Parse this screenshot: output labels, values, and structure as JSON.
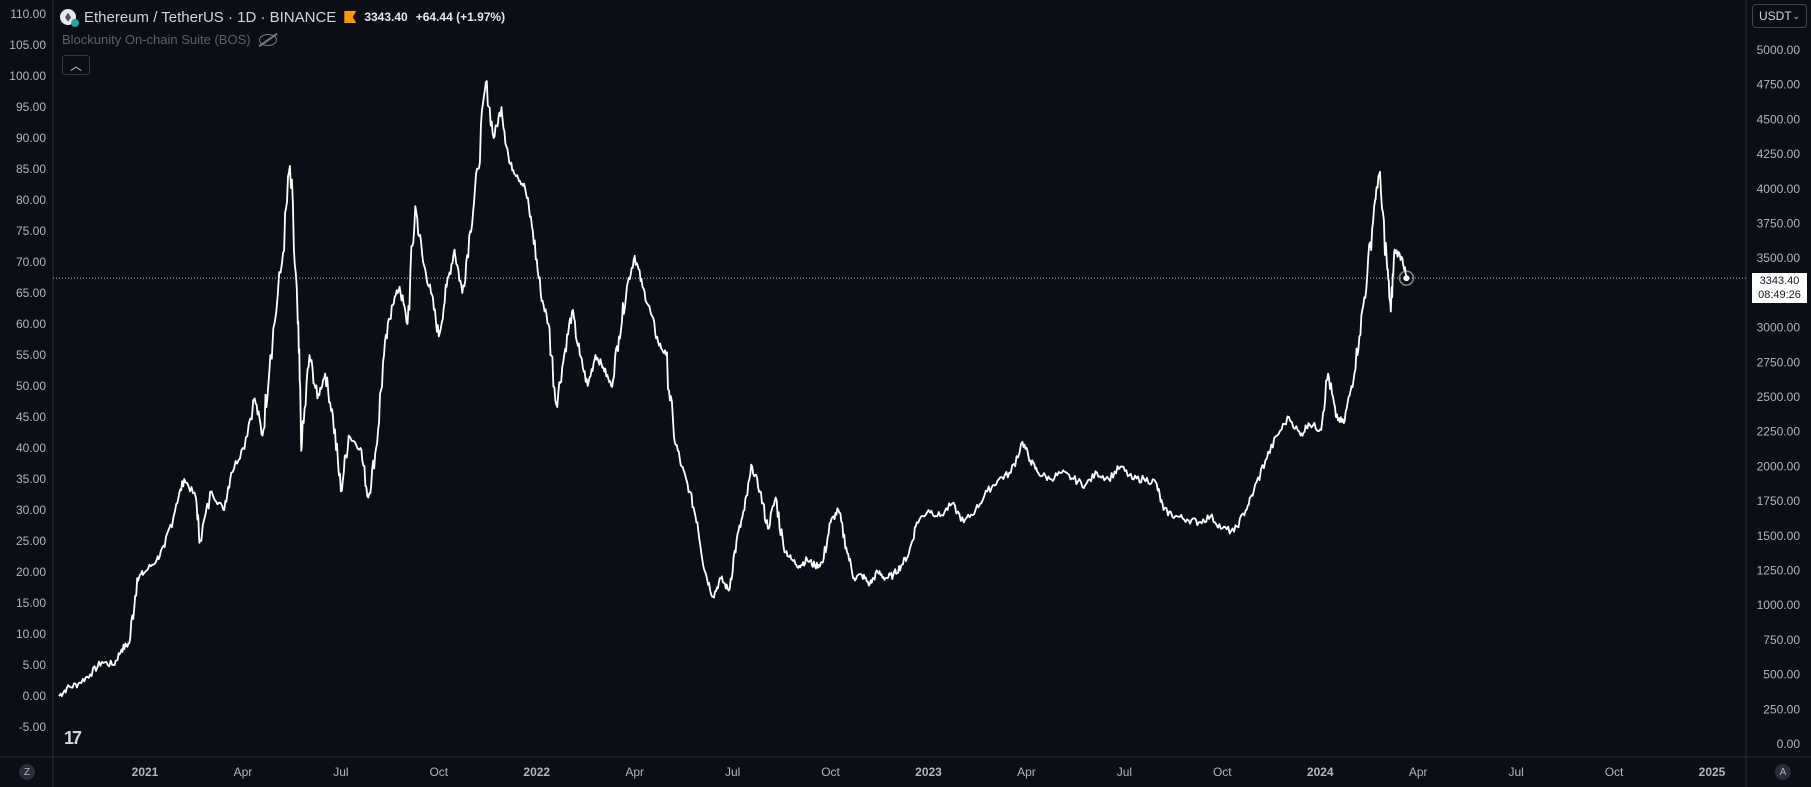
{
  "header": {
    "symbol_title": "Ethereum / TetherUS · 1D · BINANCE",
    "last_price": "3343.40",
    "change": "+64.44 (+1.97%)",
    "indicator_name": "Blockunity On-chain Suite (BOS)",
    "collapse_icon": "chevron-up-icon"
  },
  "currency_selector": {
    "label": "USDT",
    "icon": "chevron-down-icon"
  },
  "price_label": {
    "price": "3343.40",
    "countdown": "08:49:26"
  },
  "corner_buttons": {
    "left": "Z",
    "right": "A"
  },
  "colors": {
    "background": "#0c0e15",
    "line": "#ffffff",
    "text": "#b2b5be",
    "flag": "#ff9800"
  },
  "chart_data": {
    "type": "line",
    "left_axis": {
      "ticks": [
        "110.00",
        "105.00",
        "100.00",
        "95.00",
        "90.00",
        "85.00",
        "80.00",
        "75.00",
        "70.00",
        "65.00",
        "60.00",
        "55.00",
        "50.00",
        "45.00",
        "40.00",
        "35.00",
        "30.00",
        "25.00",
        "20.00",
        "15.00",
        "10.00",
        "5.00",
        "0.00",
        "-5.00"
      ],
      "range": [
        -5,
        110
      ]
    },
    "right_axis": {
      "ticks": [
        "5000.00",
        "4750.00",
        "4500.00",
        "4250.00",
        "4000.00",
        "3750.00",
        "3500.00",
        "3250.00",
        "3000.00",
        "2750.00",
        "2500.00",
        "2250.00",
        "2000.00",
        "1750.00",
        "1500.00",
        "1250.00",
        "1000.00",
        "750.00",
        "500.00",
        "250.00",
        "0.00"
      ],
      "range": [
        0,
        5000
      ]
    },
    "x_ticks": [
      {
        "label": "2021",
        "t": 2021.0,
        "bold": true
      },
      {
        "label": "Apr",
        "t": 2021.25
      },
      {
        "label": "Jul",
        "t": 2021.5
      },
      {
        "label": "Oct",
        "t": 2021.75
      },
      {
        "label": "2022",
        "t": 2022.0,
        "bold": true
      },
      {
        "label": "Apr",
        "t": 2022.25
      },
      {
        "label": "Jul",
        "t": 2022.5
      },
      {
        "label": "Oct",
        "t": 2022.75
      },
      {
        "label": "2023",
        "t": 2023.0,
        "bold": true
      },
      {
        "label": "Apr",
        "t": 2023.25
      },
      {
        "label": "Jul",
        "t": 2023.5
      },
      {
        "label": "Oct",
        "t": 2023.75
      },
      {
        "label": "2024",
        "t": 2024.0,
        "bold": true
      },
      {
        "label": "Apr",
        "t": 2024.25
      },
      {
        "label": "Jul",
        "t": 2024.5
      },
      {
        "label": "Oct",
        "t": 2024.75
      },
      {
        "label": "2025",
        "t": 2025.0,
        "bold": true
      }
    ],
    "x_range": [
      2020.78,
      2025.1
    ],
    "series": [
      {
        "points": [
          [
            2020.78,
            0
          ],
          [
            2020.8,
            1.2
          ],
          [
            2020.83,
            2.0
          ],
          [
            2020.86,
            3.5
          ],
          [
            2020.89,
            5.5
          ],
          [
            2020.92,
            5.0
          ],
          [
            2020.94,
            7.5
          ],
          [
            2020.96,
            8.5
          ],
          [
            2020.98,
            19.0
          ],
          [
            2021.0,
            20.0
          ],
          [
            2021.03,
            22.0
          ],
          [
            2021.05,
            24.0
          ],
          [
            2021.08,
            31.0
          ],
          [
            2021.1,
            35.0
          ],
          [
            2021.13,
            32.0
          ],
          [
            2021.14,
            25.0
          ],
          [
            2021.17,
            33.0
          ],
          [
            2021.2,
            30.0
          ],
          [
            2021.22,
            36.0
          ],
          [
            2021.25,
            40.0
          ],
          [
            2021.28,
            48.0
          ],
          [
            2021.3,
            42.0
          ],
          [
            2021.32,
            55.0
          ],
          [
            2021.35,
            70.0
          ],
          [
            2021.37,
            85.5
          ],
          [
            2021.39,
            60.0
          ],
          [
            2021.4,
            40.0
          ],
          [
            2021.42,
            55.0
          ],
          [
            2021.44,
            48.0
          ],
          [
            2021.46,
            52.0
          ],
          [
            2021.48,
            45.0
          ],
          [
            2021.5,
            33.0
          ],
          [
            2021.52,
            42.0
          ],
          [
            2021.55,
            40.0
          ],
          [
            2021.57,
            32.0
          ],
          [
            2021.59,
            40.0
          ],
          [
            2021.61,
            55.0
          ],
          [
            2021.63,
            63.0
          ],
          [
            2021.65,
            66.0
          ],
          [
            2021.67,
            60.0
          ],
          [
            2021.69,
            79.0
          ],
          [
            2021.71,
            70.0
          ],
          [
            2021.73,
            65.0
          ],
          [
            2021.75,
            58.0
          ],
          [
            2021.77,
            66.0
          ],
          [
            2021.79,
            72.0
          ],
          [
            2021.81,
            65.0
          ],
          [
            2021.83,
            75.0
          ],
          [
            2021.85,
            85.0
          ],
          [
            2021.87,
            99.0
          ],
          [
            2021.89,
            90.0
          ],
          [
            2021.91,
            95.0
          ],
          [
            2021.93,
            86.0
          ],
          [
            2021.95,
            84.0
          ],
          [
            2021.97,
            82.0
          ],
          [
            2021.99,
            75.0
          ],
          [
            2022.01,
            65.0
          ],
          [
            2022.03,
            60.0
          ],
          [
            2022.05,
            47.0
          ],
          [
            2022.07,
            55.0
          ],
          [
            2022.09,
            62.0
          ],
          [
            2022.11,
            55.0
          ],
          [
            2022.13,
            50.0
          ],
          [
            2022.15,
            55.0
          ],
          [
            2022.17,
            53.0
          ],
          [
            2022.19,
            50.0
          ],
          [
            2022.21,
            58.0
          ],
          [
            2022.23,
            66.0
          ],
          [
            2022.25,
            71.0
          ],
          [
            2022.27,
            66.0
          ],
          [
            2022.29,
            62.0
          ],
          [
            2022.31,
            57.0
          ],
          [
            2022.33,
            55.0
          ],
          [
            2022.35,
            42.0
          ],
          [
            2022.37,
            37.0
          ],
          [
            2022.39,
            33.0
          ],
          [
            2022.41,
            28.0
          ],
          [
            2022.43,
            20.0
          ],
          [
            2022.45,
            16.0
          ],
          [
            2022.47,
            19.0
          ],
          [
            2022.49,
            17.0
          ],
          [
            2022.51,
            25.0
          ],
          [
            2022.53,
            30.0
          ],
          [
            2022.55,
            37.0
          ],
          [
            2022.57,
            33.0
          ],
          [
            2022.59,
            27.0
          ],
          [
            2022.61,
            32.0
          ],
          [
            2022.63,
            24.0
          ],
          [
            2022.65,
            22.0
          ],
          [
            2022.67,
            21.0
          ],
          [
            2022.69,
            22.0
          ],
          [
            2022.71,
            21.0
          ],
          [
            2022.73,
            21.5
          ],
          [
            2022.75,
            28.0
          ],
          [
            2022.77,
            30.0
          ],
          [
            2022.79,
            24.0
          ],
          [
            2022.81,
            19.0
          ],
          [
            2022.83,
            19.5
          ],
          [
            2022.85,
            18.0
          ],
          [
            2022.87,
            20.0
          ],
          [
            2022.89,
            19.0
          ],
          [
            2022.91,
            19.5
          ],
          [
            2022.93,
            21.0
          ],
          [
            2022.95,
            23.0
          ],
          [
            2022.97,
            28.0
          ],
          [
            2023.0,
            30.0
          ],
          [
            2023.03,
            29.0
          ],
          [
            2023.06,
            31.0
          ],
          [
            2023.09,
            28.0
          ],
          [
            2023.12,
            30.0
          ],
          [
            2023.15,
            33.0
          ],
          [
            2023.18,
            35.0
          ],
          [
            2023.21,
            36.0
          ],
          [
            2023.24,
            41.0
          ],
          [
            2023.26,
            38.0
          ],
          [
            2023.28,
            36.0
          ],
          [
            2023.31,
            35.0
          ],
          [
            2023.34,
            36.0
          ],
          [
            2023.37,
            35.0
          ],
          [
            2023.4,
            34.0
          ],
          [
            2023.43,
            36.0
          ],
          [
            2023.46,
            35.0
          ],
          [
            2023.49,
            37.0
          ],
          [
            2023.52,
            35.0
          ],
          [
            2023.55,
            35.0
          ],
          [
            2023.58,
            34.5
          ],
          [
            2023.6,
            30.0
          ],
          [
            2023.63,
            29.0
          ],
          [
            2023.66,
            28.5
          ],
          [
            2023.69,
            28.0
          ],
          [
            2023.72,
            29.0
          ],
          [
            2023.75,
            27.0
          ],
          [
            2023.78,
            26.5
          ],
          [
            2023.81,
            30.0
          ],
          [
            2023.83,
            33.0
          ],
          [
            2023.86,
            38.0
          ],
          [
            2023.89,
            42.0
          ],
          [
            2023.92,
            45.0
          ],
          [
            2023.95,
            42.0
          ],
          [
            2023.97,
            44.0
          ],
          [
            2024.0,
            43.0
          ],
          [
            2024.02,
            52.0
          ],
          [
            2024.04,
            45.0
          ],
          [
            2024.06,
            44.0
          ],
          [
            2024.08,
            50.0
          ],
          [
            2024.1,
            58.0
          ],
          [
            2024.12,
            68.0
          ],
          [
            2024.14,
            80.0
          ],
          [
            2024.15,
            84.0
          ],
          [
            2024.17,
            70.0
          ],
          [
            2024.18,
            62.0
          ],
          [
            2024.19,
            72.0
          ],
          [
            2024.21,
            70.5
          ],
          [
            2024.22,
            67.4
          ]
        ]
      }
    ],
    "reference_line": {
      "value": 67.4,
      "style": "dotted"
    }
  }
}
